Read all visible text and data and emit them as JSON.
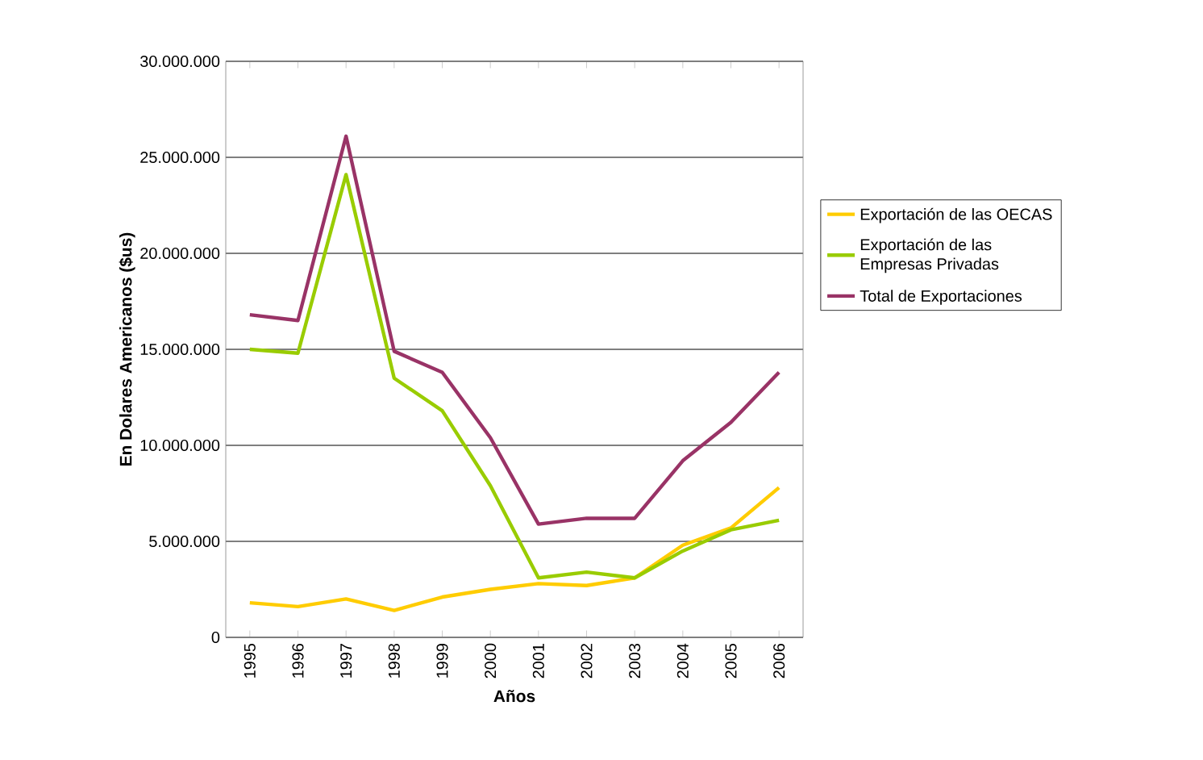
{
  "chart_data": {
    "type": "line",
    "xlabel": "Años",
    "ylabel": "En Dolares Americanos ($us)",
    "categories": [
      "1995",
      "1996",
      "1997",
      "1998",
      "1999",
      "2000",
      "2001",
      "2002",
      "2003",
      "2004",
      "2005",
      "2006"
    ],
    "series": [
      {
        "name": "Exportación de las OECAS",
        "color": "#ffcc00",
        "values": [
          1800000,
          1600000,
          2000000,
          1400000,
          2100000,
          2500000,
          2800000,
          2700000,
          3100000,
          4800000,
          5700000,
          7800000
        ]
      },
      {
        "name": "Exportación de las Empresas Privadas",
        "color": "#99cc00",
        "values": [
          15000000,
          14800000,
          24100000,
          13500000,
          11800000,
          7900000,
          3100000,
          3400000,
          3100000,
          4500000,
          5600000,
          6100000
        ]
      },
      {
        "name": "Total de Exportaciones",
        "color": "#993366",
        "values": [
          16800000,
          16500000,
          26100000,
          14900000,
          13800000,
          10400000,
          5900000,
          6200000,
          6200000,
          9200000,
          11200000,
          13800000
        ]
      }
    ],
    "ylim": [
      0,
      30000000
    ],
    "yticks": [
      {
        "value": 0,
        "label": "0"
      },
      {
        "value": 5000000,
        "label": "5.000.000"
      },
      {
        "value": 10000000,
        "label": "10.000.000"
      },
      {
        "value": 15000000,
        "label": "15.000.000"
      },
      {
        "value": 20000000,
        "label": "20.000.000"
      },
      {
        "value": 25000000,
        "label": "25.000.000"
      },
      {
        "value": 30000000,
        "label": "30.000.000"
      }
    ],
    "grid": "y",
    "legend": "right",
    "marker": "none",
    "line_style": "solid"
  }
}
